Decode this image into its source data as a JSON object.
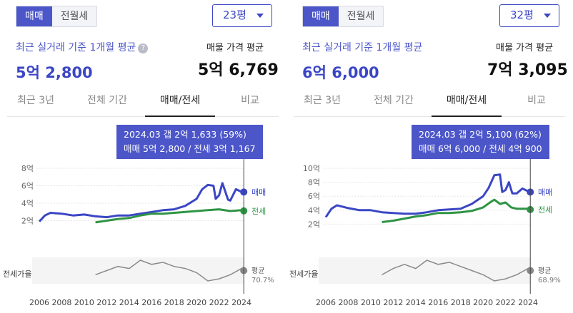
{
  "panels": [
    {
      "tabs_toggle": [
        "매매",
        "전월세"
      ],
      "size": "23평",
      "avg_label": "최근 실거래 기준 1개월 평균",
      "avg_value": "5억 2,800",
      "listing_label": "매물 가격 평균",
      "listing_value": "5억 6,769",
      "period_tabs": [
        "최근 3년",
        "전체 기간",
        "매매/전세",
        "비교"
      ],
      "active_tab": "매매/전세",
      "tooltip_line1": "2024.03  갭 2억 1,633 (59%)",
      "tooltip_line2": "매매 5억 2,800 / 전세 3억 1,167",
      "series_labels": {
        "sale": "매매",
        "jeonse": "전세"
      },
      "ratio_label": "전세가율",
      "ratio_avg_label": "평균",
      "ratio_avg_value": "70.7%",
      "y_ticks": [
        "8억",
        "6억",
        "4억",
        "2억"
      ],
      "x_ticks": [
        "2006",
        "2008",
        "2010",
        "2012",
        "2014",
        "2016",
        "2018",
        "2020",
        "2022",
        "2024"
      ]
    },
    {
      "tabs_toggle": [
        "매매",
        "전월세"
      ],
      "size": "32평",
      "avg_label": "최근 실거래 기준 1개월 평균",
      "avg_value": "6억 6,000",
      "listing_label": "매물 가격 평균",
      "listing_value": "7억 3,095",
      "period_tabs": [
        "최근 3년",
        "전체 기간",
        "매매/전세",
        "비교"
      ],
      "active_tab": "매매/전세",
      "tooltip_line1": "2024.03  갭 2억 5,100 (62%)",
      "tooltip_line2": "매매 6억 6,000 / 전세 4억 900",
      "series_labels": {
        "sale": "매매",
        "jeonse": "전세"
      },
      "ratio_label": "전세가율",
      "ratio_avg_label": "평균",
      "ratio_avg_value": "68.9%",
      "y_ticks": [
        "10억",
        "8억",
        "6억",
        "4억",
        "2억"
      ],
      "x_ticks": [
        "2006",
        "2008",
        "2010",
        "2012",
        "2014",
        "2016",
        "2018",
        "2020",
        "2022",
        "2024"
      ]
    }
  ],
  "colors": {
    "sale": "#3b46c5",
    "jeonse": "#2e9444",
    "ratio": "#8a8a8a",
    "accent": "#4c56c9"
  },
  "chart_data": [
    {
      "type": "line",
      "title": "",
      "xlabel": "",
      "ylabel": "",
      "xlim": [
        2006,
        2024.25
      ],
      "ylim": [
        0,
        8
      ],
      "unit": "억",
      "series": [
        {
          "name": "매매",
          "points": [
            [
              2006,
              1.9
            ],
            [
              2006.5,
              2.6
            ],
            [
              2007,
              2.9
            ],
            [
              2008,
              2.8
            ],
            [
              2009,
              2.6
            ],
            [
              2010,
              2.7
            ],
            [
              2011,
              2.5
            ],
            [
              2012,
              2.4
            ],
            [
              2013,
              2.6
            ],
            [
              2014,
              2.6
            ],
            [
              2015,
              2.8
            ],
            [
              2016,
              3.0
            ],
            [
              2017,
              3.2
            ],
            [
              2018,
              3.3
            ],
            [
              2019,
              3.7
            ],
            [
              2020,
              4.5
            ],
            [
              2020.5,
              5.6
            ],
            [
              2021,
              6.1
            ],
            [
              2021.5,
              6.0
            ],
            [
              2021.7,
              4.5
            ],
            [
              2022,
              4.9
            ],
            [
              2022.3,
              6.3
            ],
            [
              2022.8,
              4.4
            ],
            [
              2023,
              4.3
            ],
            [
              2023.5,
              5.6
            ],
            [
              2024,
              5.3
            ],
            [
              2024.2,
              5.28
            ]
          ]
        },
        {
          "name": "전세",
          "points": [
            [
              2011,
              1.8
            ],
            [
              2012,
              2.0
            ],
            [
              2013,
              2.2
            ],
            [
              2014,
              2.3
            ],
            [
              2015,
              2.6
            ],
            [
              2016,
              2.8
            ],
            [
              2017,
              2.8
            ],
            [
              2018,
              2.9
            ],
            [
              2019,
              3.0
            ],
            [
              2020,
              3.1
            ],
            [
              2021,
              3.2
            ],
            [
              2022,
              3.3
            ],
            [
              2023,
              3.1
            ],
            [
              2024,
              3.2
            ],
            [
              2024.2,
              3.12
            ]
          ]
        }
      ],
      "ratio_series": {
        "name": "전세가율",
        "points": [
          [
            2011,
            0.3
          ],
          [
            2012,
            0.5
          ],
          [
            2013,
            0.7
          ],
          [
            2014,
            0.6
          ],
          [
            2015,
            1.0
          ],
          [
            2016,
            0.8
          ],
          [
            2017,
            0.9
          ],
          [
            2018,
            0.7
          ],
          [
            2019,
            0.6
          ],
          [
            2020,
            0.4
          ],
          [
            2021,
            0.0
          ],
          [
            2022,
            0.1
          ],
          [
            2023,
            0.3
          ],
          [
            2024,
            0.6
          ],
          [
            2024.2,
            0.5
          ]
        ]
      },
      "annotation": {
        "date": "2024.03",
        "sale": 5.28,
        "jeonse": 3.1167
      }
    },
    {
      "type": "line",
      "title": "",
      "xlabel": "",
      "ylabel": "",
      "xlim": [
        2006,
        2024.25
      ],
      "ylim": [
        0,
        10
      ],
      "unit": "억",
      "series": [
        {
          "name": "매매",
          "points": [
            [
              2006,
              3.0
            ],
            [
              2006.5,
              4.2
            ],
            [
              2007,
              4.7
            ],
            [
              2008,
              4.3
            ],
            [
              2009,
              4.0
            ],
            [
              2010,
              4.0
            ],
            [
              2011,
              3.7
            ],
            [
              2012,
              3.6
            ],
            [
              2013,
              3.5
            ],
            [
              2014,
              3.5
            ],
            [
              2015,
              3.7
            ],
            [
              2016,
              4.0
            ],
            [
              2017,
              4.1
            ],
            [
              2018,
              4.2
            ],
            [
              2019,
              4.9
            ],
            [
              2020,
              6.0
            ],
            [
              2020.5,
              7.2
            ],
            [
              2021,
              9.0
            ],
            [
              2021.5,
              9.1
            ],
            [
              2021.7,
              6.6
            ],
            [
              2022,
              6.9
            ],
            [
              2022.3,
              8.0
            ],
            [
              2022.6,
              6.4
            ],
            [
              2023,
              6.4
            ],
            [
              2023.5,
              7.1
            ],
            [
              2024,
              6.7
            ],
            [
              2024.2,
              6.6
            ]
          ]
        },
        {
          "name": "전세",
          "points": [
            [
              2011,
              2.3
            ],
            [
              2012,
              2.5
            ],
            [
              2013,
              2.8
            ],
            [
              2014,
              3.1
            ],
            [
              2015,
              3.3
            ],
            [
              2016,
              3.6
            ],
            [
              2017,
              3.6
            ],
            [
              2018,
              3.7
            ],
            [
              2019,
              3.9
            ],
            [
              2020,
              4.4
            ],
            [
              2020.7,
              5.2
            ],
            [
              2021,
              5.5
            ],
            [
              2021.5,
              4.9
            ],
            [
              2022,
              5.1
            ],
            [
              2022.5,
              4.4
            ],
            [
              2023,
              4.2
            ],
            [
              2024,
              4.2
            ],
            [
              2024.2,
              4.09
            ]
          ]
        }
      ],
      "ratio_series": {
        "name": "전세가율",
        "points": [
          [
            2011,
            0.3
          ],
          [
            2012,
            0.6
          ],
          [
            2013,
            0.8
          ],
          [
            2014,
            0.6
          ],
          [
            2015,
            1.0
          ],
          [
            2016,
            0.8
          ],
          [
            2017,
            0.9
          ],
          [
            2018,
            0.7
          ],
          [
            2019,
            0.5
          ],
          [
            2020,
            0.3
          ],
          [
            2021,
            0.0
          ],
          [
            2022,
            0.1
          ],
          [
            2023,
            0.3
          ],
          [
            2024,
            0.6
          ],
          [
            2024.2,
            0.5
          ]
        ]
      },
      "annotation": {
        "date": "2024.03",
        "sale": 6.6,
        "jeonse": 4.09
      }
    }
  ]
}
